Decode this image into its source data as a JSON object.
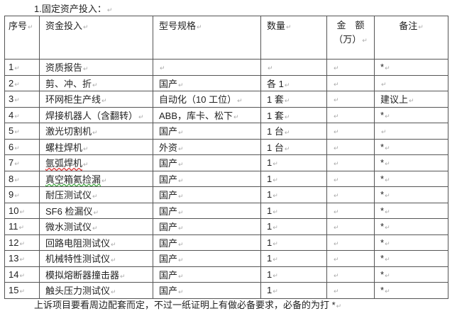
{
  "mark": "↵",
  "title": "1.固定资产投入：",
  "headers": {
    "no": "序号",
    "item": "资金投入",
    "spec": "型号规格",
    "qty": "数量",
    "amount_line1": "金　额",
    "amount_line2": "（万）",
    "note": "备注"
  },
  "rows": [
    {
      "no": "1",
      "item": "资质报告",
      "spec": "",
      "qty": "",
      "amount": "",
      "note": "*"
    },
    {
      "no": "2",
      "item": "剪、冲、折",
      "spec": "国产",
      "qty": "各 1",
      "amount": "",
      "note": ""
    },
    {
      "no": "3",
      "item": "环网柜生产线",
      "spec": "自动化（10 工位）",
      "qty": "1 套",
      "amount": "",
      "note": "建议上"
    },
    {
      "no": "4",
      "item": "焊接机器人（含翻转）",
      "spec": "ABB，库卡、松下",
      "qty": "1 套",
      "amount": "",
      "note": "*"
    },
    {
      "no": "5",
      "item": "激光切割机",
      "spec": "国产",
      "qty": "1 台",
      "amount": "",
      "note": ""
    },
    {
      "no": "6",
      "item": "螺柱焊机",
      "spec": "外资",
      "qty": "1 台",
      "amount": "",
      "note": "*"
    },
    {
      "no": "7",
      "item": "氩弧焊机",
      "spec": "国产",
      "qty": "1",
      "amount": "",
      "note": "*"
    },
    {
      "no": "8",
      "item": "真空箱氦捡漏",
      "spec": "国产",
      "qty": "1",
      "amount": "",
      "note": "*"
    },
    {
      "no": "9",
      "item": "耐压测试仪",
      "spec": "国产",
      "qty": "1",
      "amount": "",
      "note": "*"
    },
    {
      "no": "10",
      "item": "SF6 检漏仪",
      "spec": "国产",
      "qty": "1",
      "amount": "",
      "note": "*"
    },
    {
      "no": "11",
      "item": "微水测试仪",
      "spec": "国产",
      "qty": "1",
      "amount": "",
      "note": "*"
    },
    {
      "no": "12",
      "item": "回路电阻测试仪",
      "spec": "国产",
      "qty": "1",
      "amount": "",
      "note": "*"
    },
    {
      "no": "13",
      "item": "机械特性测试仪",
      "spec": "国产",
      "qty": "1",
      "amount": "",
      "note": "*"
    },
    {
      "no": "14",
      "item": "模拟熔断器撞击器",
      "spec": "国产",
      "qty": "1",
      "amount": "",
      "note": "*"
    },
    {
      "no": "15",
      "item": "触头压力测试仪",
      "spec": "国产",
      "qty": "1",
      "amount": "",
      "note": "*"
    }
  ],
  "footer": "上诉项目要看周边配套而定，不过一纸证明上有做必备要求，必备的为打 *"
}
